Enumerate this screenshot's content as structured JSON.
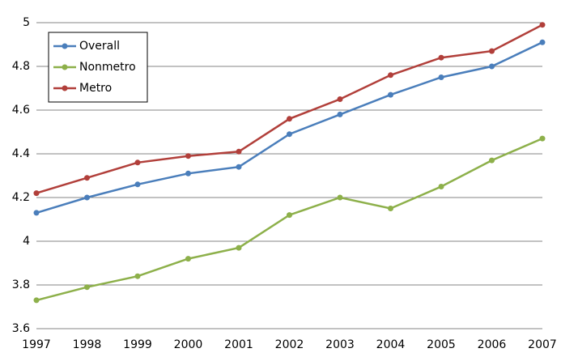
{
  "chart_data": {
    "type": "line",
    "categories": [
      "1997",
      "1998",
      "1999",
      "2000",
      "2001",
      "2002",
      "2003",
      "2004",
      "2005",
      "2006",
      "2007"
    ],
    "series": [
      {
        "name": "Overall",
        "color": "#4a7ebb",
        "values": [
          4.13,
          4.2,
          4.26,
          4.31,
          4.34,
          4.49,
          4.58,
          4.67,
          4.75,
          4.8,
          4.91
        ]
      },
      {
        "name": "Nonmetro",
        "color": "#8db04a",
        "values": [
          3.73,
          3.79,
          3.84,
          3.92,
          3.97,
          4.12,
          4.2,
          4.15,
          4.25,
          4.37,
          4.47
        ]
      },
      {
        "name": "Metro",
        "color": "#b13f3a",
        "values": [
          4.22,
          4.29,
          4.36,
          4.39,
          4.41,
          4.56,
          4.65,
          4.76,
          4.84,
          4.87,
          4.99
        ]
      }
    ],
    "ylim": [
      3.6,
      5
    ],
    "yticks": [
      3.6,
      3.8,
      4,
      4.2,
      4.4,
      4.6,
      4.8,
      5
    ],
    "grid": true,
    "legend": "top-left"
  }
}
